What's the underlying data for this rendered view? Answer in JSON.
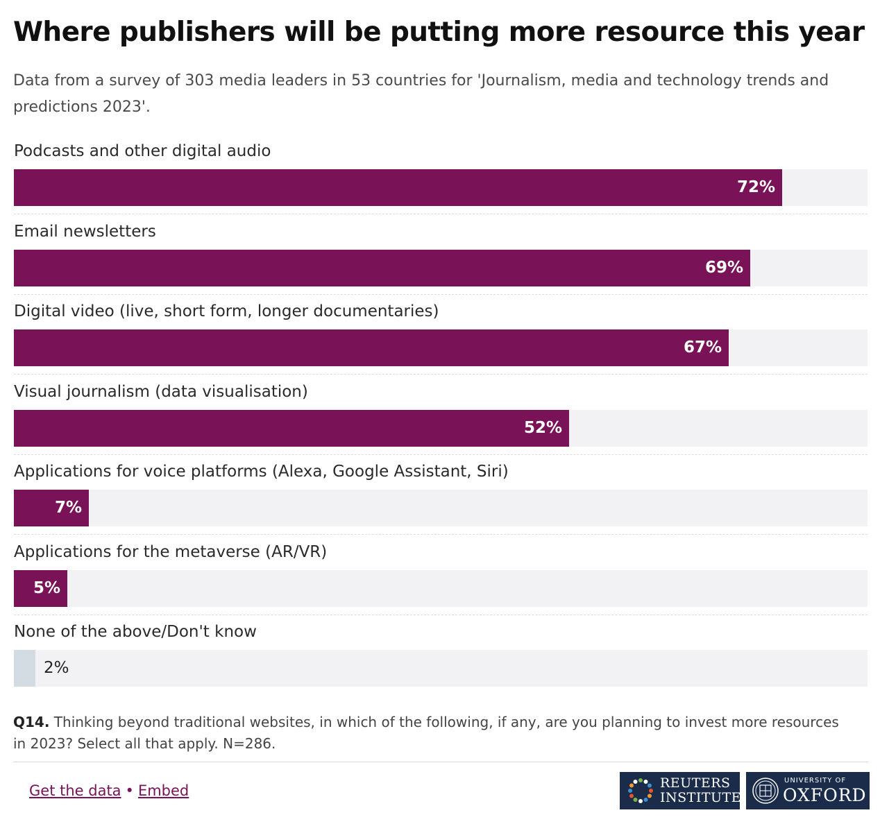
{
  "header": {
    "title": "Where publishers will be putting more resource this year",
    "subtitle": "Data from a survey of 303 media leaders in 53 countries for 'Journalism, media and technology trends and predictions 2023'."
  },
  "chart_data": {
    "type": "bar",
    "orientation": "horizontal",
    "title": "Where publishers will be putting more resource this year",
    "categories": [
      "Podcasts and other digital audio",
      "Email newsletters",
      "Digital video (live, short form, longer documentaries)",
      "Visual journalism (data visualisation)",
      "Applications for voice platforms (Alexa, Google Assistant, Siri)",
      "Applications for the metaverse (AR/VR)",
      "None of the above/Don't know"
    ],
    "values": [
      72,
      69,
      67,
      52,
      7,
      5,
      2
    ],
    "value_labels": [
      "72%",
      "69%",
      "67%",
      "52%",
      "7%",
      "5%",
      "2%"
    ],
    "unit": "%",
    "xlim": [
      0,
      80
    ],
    "colors": {
      "bar": "#7a1258",
      "none_bar": "#d3dbe3",
      "track": "#f2f2f4",
      "label_inside": "#ffffff",
      "label_outside": "#222222"
    }
  },
  "note": {
    "prefix": "Q14.",
    "text": "Thinking beyond traditional websites, in which of the following, if any, are you planning to invest more resources in 2023? Select all that apply. N=286."
  },
  "footer": {
    "get_data": "Get the data",
    "separator": "•",
    "embed": "Embed",
    "logo_reuters_line1": "REUTERS",
    "logo_reuters_line2": "INSTITUTE",
    "logo_oxford_small": "UNIVERSITY OF",
    "logo_oxford_big": "OXFORD",
    "logo_bg": "#1b2b4a"
  }
}
